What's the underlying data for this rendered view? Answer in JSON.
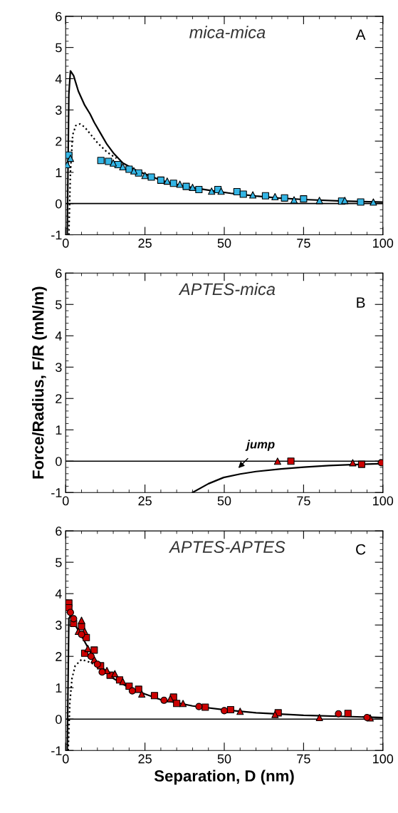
{
  "chart_data": [
    {
      "type": "scatter",
      "title": "mica-mica",
      "annotations": [
        "A"
      ],
      "xlim": [
        0,
        100
      ],
      "ylim": [
        -1,
        6
      ],
      "xticks": [
        0,
        25,
        50,
        75,
        100
      ],
      "yticks": [
        -1,
        0,
        1,
        2,
        3,
        4,
        5,
        6
      ],
      "ref_lines": [
        {
          "axis": "y",
          "value": 0,
          "color": "#000000"
        }
      ],
      "series": [
        {
          "type": "line",
          "color": "#000000",
          "line_style": "solid",
          "x": [
            0.5,
            1.0,
            1.5,
            2.5,
            4,
            6,
            7.7,
            9,
            11,
            13,
            15.2,
            18,
            22.7,
            30.2,
            37,
            45,
            52,
            60,
            67,
            75,
            87,
            100
          ],
          "values": [
            -1,
            3.5,
            4.25,
            4.1,
            3.6,
            3.15,
            2.87,
            2.6,
            2.25,
            1.9,
            1.6,
            1.3,
            1.04,
            0.74,
            0.56,
            0.43,
            0.33,
            0.24,
            0.18,
            0.13,
            0.08,
            0.05
          ]
        },
        {
          "type": "line",
          "color": "#000000",
          "line_style": "dotted",
          "x": [
            1.0,
            1.5,
            2.2,
            3.2,
            4.5,
            6,
            8,
            10,
            13,
            16
          ],
          "values": [
            -1,
            1.0,
            2.2,
            2.5,
            2.55,
            2.45,
            2.2,
            1.95,
            1.65,
            1.45
          ]
        },
        {
          "type": "scatter",
          "color": "#33b5e5",
          "marker": "square",
          "x": [
            1.0,
            11.1,
            13.5,
            16.5,
            20,
            23,
            27,
            30,
            34,
            38,
            42,
            48,
            54,
            56,
            63,
            69,
            75,
            87,
            93
          ],
          "values": [
            1.55,
            1.38,
            1.35,
            1.25,
            1.1,
            0.98,
            0.85,
            0.75,
            0.65,
            0.55,
            0.45,
            0.45,
            0.38,
            0.3,
            0.25,
            0.18,
            0.15,
            0.08,
            0.05
          ]
        },
        {
          "type": "scatter",
          "color": "#33b5e5",
          "marker": "triangle",
          "x": [
            0.5,
            1.5,
            15,
            18,
            21.5,
            25,
            32,
            36,
            40,
            46,
            49,
            59,
            66,
            72,
            80,
            88,
            97
          ],
          "values": [
            1.25,
            1.45,
            1.3,
            1.18,
            1.05,
            0.9,
            0.72,
            0.62,
            0.52,
            0.4,
            0.4,
            0.28,
            0.22,
            0.12,
            0.1,
            0.1,
            0.05
          ]
        }
      ]
    },
    {
      "type": "scatter",
      "title": "APTES-mica",
      "ylabel": "Force/Radius, F/R (mN/m)",
      "annotations": [
        "B",
        "jump"
      ],
      "xlim": [
        0,
        100
      ],
      "ylim": [
        -1,
        6
      ],
      "xticks": [
        0,
        25,
        50,
        75,
        100
      ],
      "yticks": [
        -1,
        0,
        1,
        2,
        3,
        4,
        5,
        6
      ],
      "ref_lines": [
        {
          "axis": "y",
          "value": 0,
          "color": "#000000"
        }
      ],
      "series": [
        {
          "type": "line",
          "color": "#000000",
          "line_style": "solid",
          "x": [
            40,
            45,
            49.8,
            55,
            60,
            67.9,
            75,
            83,
            90,
            100
          ],
          "values": [
            -1,
            -0.72,
            -0.52,
            -0.41,
            -0.33,
            -0.25,
            -0.19,
            -0.14,
            -0.11,
            -0.08
          ]
        },
        {
          "type": "scatter",
          "color": "#cc0000",
          "marker": "square",
          "x": [
            71,
            93.3
          ],
          "values": [
            0.0,
            -0.1
          ]
        },
        {
          "type": "scatter",
          "color": "#cc0000",
          "marker": "triangle",
          "x": [
            66.8,
            90.5
          ],
          "values": [
            0.0,
            -0.05
          ]
        },
        {
          "type": "scatter",
          "color": "#cc0000",
          "marker": "circle",
          "x": [
            99.5
          ],
          "values": [
            -0.05
          ]
        }
      ]
    },
    {
      "type": "scatter",
      "title": "APTES-APTES",
      "xlabel": "Separation, D (nm)",
      "annotations": [
        "C"
      ],
      "xlim": [
        0,
        100
      ],
      "ylim": [
        -1,
        6
      ],
      "xticks": [
        0,
        25,
        50,
        75,
        100
      ],
      "yticks": [
        -1,
        0,
        1,
        2,
        3,
        4,
        5,
        6
      ],
      "ref_lines": [
        {
          "axis": "y",
          "value": 0,
          "color": "#000000"
        }
      ],
      "series": [
        {
          "type": "line",
          "color": "#000000",
          "line_style": "solid",
          "x": [
            0.5,
            1.0,
            1.5,
            3,
            5,
            8,
            10,
            15,
            20,
            25,
            30,
            40,
            50,
            60,
            75,
            100
          ],
          "values": [
            -1,
            3.2,
            3.3,
            3.0,
            2.65,
            2.1,
            1.8,
            1.3,
            1.0,
            0.8,
            0.62,
            0.42,
            0.3,
            0.2,
            0.12,
            0.05
          ]
        },
        {
          "type": "line",
          "color": "#000000",
          "line_style": "dotted",
          "x": [
            0.8,
            1.3,
            2,
            3,
            5,
            8,
            12,
            15
          ],
          "values": [
            -1,
            0.5,
            1.3,
            1.7,
            1.9,
            1.8,
            1.55,
            1.35
          ]
        },
        {
          "type": "scatter",
          "color": "#cc0000",
          "marker": "square",
          "x": [
            1,
            1,
            2.5,
            5,
            6.5,
            6,
            9,
            11,
            14,
            17,
            20,
            23,
            28,
            34,
            35,
            44,
            52,
            67,
            89
          ],
          "values": [
            3.7,
            3.55,
            3.05,
            2.95,
            2.6,
            2.1,
            2.2,
            1.7,
            1.4,
            1.25,
            1.05,
            0.95,
            0.75,
            0.7,
            0.5,
            0.38,
            0.3,
            0.2,
            0.18
          ]
        },
        {
          "type": "scatter",
          "color": "#cc0000",
          "marker": "triangle",
          "x": [
            5,
            4,
            6,
            7,
            9,
            13,
            15.5,
            18,
            24,
            33,
            37,
            55,
            66,
            80,
            96
          ],
          "values": [
            3.15,
            2.8,
            2.8,
            2.25,
            1.9,
            1.55,
            1.45,
            1.2,
            0.8,
            0.65,
            0.5,
            0.25,
            0.15,
            0.05,
            0.04
          ]
        },
        {
          "type": "scatter",
          "color": "#cc0000",
          "marker": "circle",
          "x": [
            1.5,
            2.5,
            5,
            8,
            10,
            11.5,
            21,
            31,
            42,
            50,
            86,
            95
          ],
          "values": [
            3.4,
            3.2,
            2.7,
            2.0,
            1.75,
            1.5,
            0.9,
            0.6,
            0.4,
            0.27,
            0.17,
            0.05
          ]
        }
      ]
    }
  ]
}
